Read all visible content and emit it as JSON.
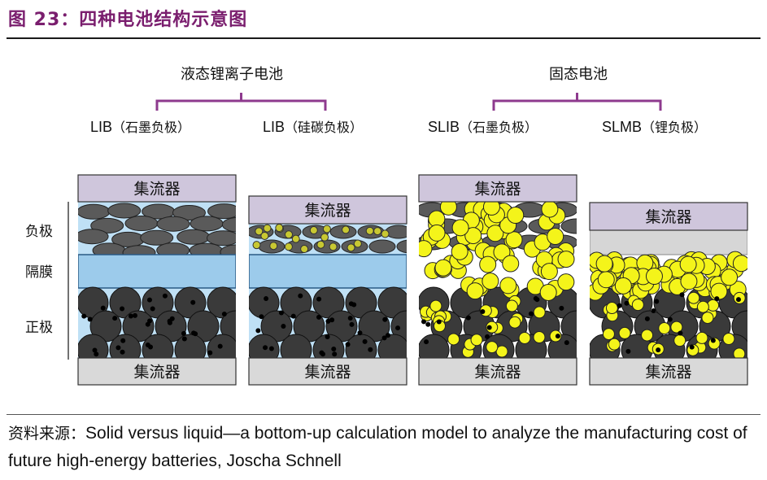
{
  "figure_title": "图 23：四种电池结构示意图",
  "groups": [
    {
      "label": "液态锂离子电池"
    },
    {
      "label": "固态电池"
    }
  ],
  "cells": [
    {
      "name": "LIB",
      "note": "（石墨负极）"
    },
    {
      "name": "LIB",
      "note": "（硅碳负极）"
    },
    {
      "name": "SLIB",
      "note": "（石墨负极）"
    },
    {
      "name": "SLMB",
      "note": "（锂负极）"
    }
  ],
  "side_labels": {
    "anode": "负极",
    "separator": "隔膜",
    "cathode": "正极"
  },
  "collector_label": "集流器",
  "source_prefix": "资料来源：",
  "source_text": "Solid versus liquid—a bottom-up calculation model to analyze the manufacturing cost of future high-energy batteries, Joscha Schnell",
  "colors": {
    "title": "#7a1e6e",
    "bracket": "#8e3a8e",
    "collector_top": "#cfc6dc",
    "collector_bottom": "#d9d9d9",
    "electrolyte": "#bfe0f5",
    "separator": "#9ccbeb",
    "graphite": "#5a5a5a",
    "cathode_particle": "#3a3a3a",
    "solid_electrolyte": "#f4f41a",
    "lithium_metal": "#d6d6d6"
  }
}
